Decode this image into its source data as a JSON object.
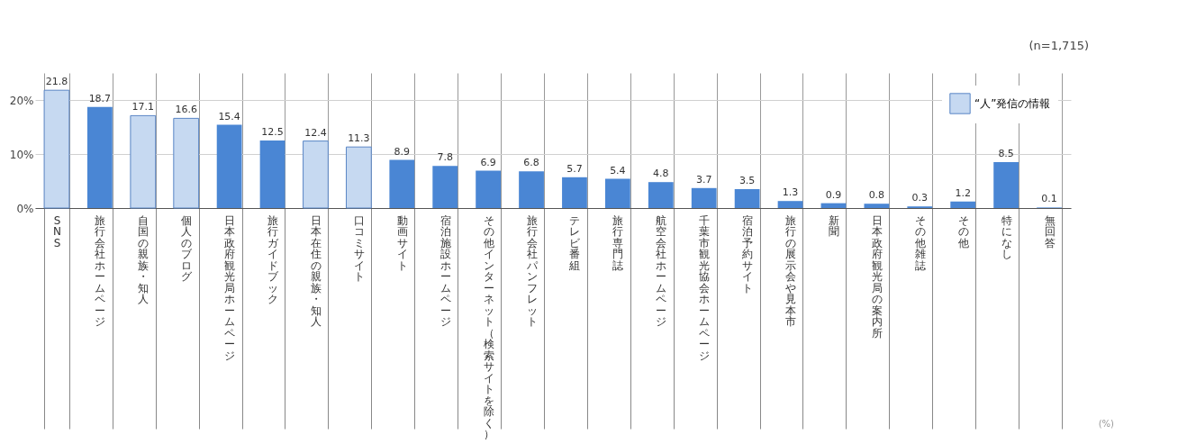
{
  "chart_data": {
    "type": "bar",
    "categories": [
      "SNS",
      "旅行会社ホームページ",
      "自国の親族・知人",
      "個人のブログ",
      "日本政府観光局ホームページ",
      "旅行ガイドブック",
      "日本在住の親族・知人",
      "口コミサイト",
      "動画サイト",
      "宿泊施設ホームページ",
      "その他インターネット（検索サイトを除く）",
      "旅行会社パンフレット",
      "テレビ番組",
      "旅行専門誌",
      "航空会社ホームページ",
      "千葉市観光協会ホームページ",
      "宿泊予約サイト",
      "旅行の展示会や見本市",
      "新聞",
      "日本政府観光局の案内所",
      "その他雑誌",
      "その他",
      "特になし",
      "無回答"
    ],
    "series": [
      {
        "name": "“人”発信の情報",
        "color": "#c6d9f1",
        "values": [
          21.8,
          null,
          17.1,
          16.6,
          null,
          null,
          12.4,
          11.3,
          null,
          null,
          null,
          null,
          null,
          null,
          null,
          null,
          null,
          null,
          null,
          null,
          null,
          null,
          null,
          null
        ]
      },
      {
        "color": "#4a86d4",
        "values": [
          null,
          18.7,
          null,
          null,
          15.4,
          12.5,
          null,
          null,
          8.9,
          7.8,
          6.9,
          6.8,
          5.7,
          5.4,
          4.8,
          3.7,
          3.5,
          1.3,
          0.9,
          0.8,
          0.3,
          1.2,
          8.5,
          0.1
        ]
      }
    ],
    "ylim": [
      0,
      25
    ],
    "yticks": [
      {
        "value": 0,
        "label": "0%"
      },
      {
        "value": 10,
        "label": "10%"
      },
      {
        "value": 20,
        "label": "20%"
      }
    ],
    "grid": "y",
    "legend": "top right",
    "data_labels": true,
    "annotations": [
      "(n=1,715)",
      "(%)"
    ]
  }
}
